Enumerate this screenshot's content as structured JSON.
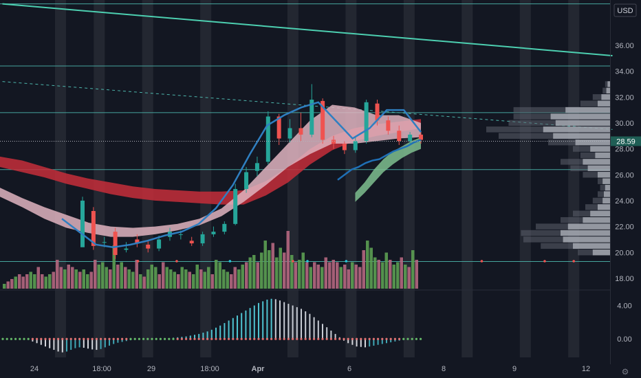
{
  "chart_data": {
    "type": "candlestick",
    "title": "",
    "currency_label": "USD",
    "last_price_label": "28.59",
    "last_price": 28.59,
    "ylim": [
      17.2,
      39.5
    ],
    "y_ticks": [
      18,
      20,
      22,
      24,
      26,
      28,
      30,
      32,
      34,
      36
    ],
    "y_tick_labels": [
      "18.00",
      "20.00",
      "22.00",
      "24.00",
      "26.00",
      "28.00",
      "30.00",
      "32.00",
      "34.00",
      "36.00"
    ],
    "x_labels": [
      "24",
      "18:00",
      "29",
      "18:00",
      "Apr",
      "6",
      "8",
      "9",
      "12"
    ],
    "horizontal_levels": [
      39.2,
      34.4,
      30.8,
      26.4,
      19.3
    ],
    "trendline": {
      "start": [
        0,
        39.2
      ],
      "end": [
        126,
        35.2
      ]
    },
    "dashed_trendline": {
      "start": [
        0,
        33.2
      ],
      "end": [
        126,
        29.5
      ]
    },
    "candles": [
      [
        20.4,
        24.0,
        24.3,
        23.6
      ],
      [
        23.2,
        20.5,
        23.5,
        20.2
      ],
      [
        20.8,
        20.8,
        21.2,
        20.4
      ],
      [
        21.6,
        19.8,
        21.9,
        19.5
      ],
      [
        20.2,
        20.3,
        20.8,
        20.0
      ],
      [
        21.0,
        20.7,
        21.4,
        20.4
      ],
      [
        20.6,
        20.3,
        20.9,
        20.0
      ],
      [
        20.3,
        21.0,
        21.3,
        20.1
      ],
      [
        21.2,
        21.6,
        21.9,
        20.9
      ],
      [
        21.4,
        21.4,
        21.7,
        21.0
      ],
      [
        20.9,
        20.7,
        21.2,
        20.5
      ],
      [
        20.7,
        21.4,
        21.6,
        20.5
      ],
      [
        21.4,
        21.6,
        22.0,
        21.2
      ],
      [
        21.6,
        22.2,
        22.4,
        21.4
      ],
      [
        22.2,
        24.9,
        25.3,
        22.1
      ],
      [
        24.9,
        26.2,
        26.6,
        24.6
      ],
      [
        26.3,
        26.9,
        27.4,
        25.9
      ],
      [
        27.0,
        30.5,
        30.9,
        26.8
      ],
      [
        30.5,
        28.8,
        30.7,
        28.3
      ],
      [
        28.8,
        29.6,
        30.3,
        28.5
      ],
      [
        29.6,
        29.1,
        30.8,
        28.6
      ],
      [
        29.1,
        31.8,
        33.0,
        28.9
      ],
      [
        31.7,
        28.7,
        31.9,
        28.4
      ],
      [
        28.7,
        28.4,
        29.0,
        28.0
      ],
      [
        28.4,
        27.9,
        28.6,
        27.6
      ],
      [
        27.9,
        28.6,
        29.0,
        27.7
      ],
      [
        28.6,
        31.6,
        31.8,
        28.4
      ],
      [
        31.5,
        30.2,
        31.8,
        29.8
      ],
      [
        30.2,
        29.4,
        30.5,
        29.1
      ],
      [
        29.4,
        28.6,
        29.8,
        28.3
      ],
      [
        28.6,
        29.1,
        29.3,
        28.4
      ],
      [
        29.1,
        28.7,
        29.3,
        28.4
      ]
    ],
    "vwap_bands": [
      {
        "name": "",
        "color": "#c62e3a",
        "upper": [
          27.4,
          27.1,
          26.6,
          26.1,
          25.7,
          25.4,
          25.1,
          24.9,
          24.8,
          24.7,
          24.7,
          24.8,
          25.5,
          26.6,
          28.0,
          29.0,
          29.6,
          29.9,
          30.1,
          30.3
        ],
        "lower": [
          26.6,
          26.2,
          25.8,
          25.3,
          24.9,
          24.5,
          24.2,
          24.0,
          23.9,
          23.8,
          23.7,
          23.7,
          24.4,
          25.4,
          26.8,
          27.9,
          28.6,
          29.0,
          29.3,
          29.6
        ]
      },
      {
        "name": "",
        "color": "#e0b4c0",
        "upper": [
          25.0,
          24.2,
          23.5,
          22.9,
          22.3,
          22.0,
          21.9,
          22.0,
          22.2,
          22.6,
          23.4,
          24.8,
          26.6,
          28.4,
          30.2,
          31.4,
          31.2,
          30.6,
          30.6,
          30.0
        ],
        "lower": [
          24.3,
          23.5,
          22.6,
          21.9,
          21.5,
          21.2,
          21.2,
          21.4,
          21.7,
          22.1,
          22.8,
          23.9,
          25.2,
          26.6,
          27.6,
          28.4,
          28.4,
          28.6,
          28.8,
          28.9
        ]
      },
      {
        "name": "",
        "color": "#7fc08f",
        "upper": [
          null,
          null,
          null,
          null,
          null,
          null,
          null,
          null,
          null,
          null,
          24.6,
          25.4,
          26.4,
          27.2,
          27.8,
          28.2,
          28.6,
          28.9
        ],
        "lower": [
          null,
          null,
          null,
          null,
          null,
          null,
          null,
          null,
          null,
          null,
          23.9,
          24.6,
          25.4,
          26.2,
          26.8,
          27.3,
          27.7,
          28.0
        ]
      }
    ],
    "ema_fast": [
      22.6,
      21.6,
      20.6,
      20.4,
      20.6,
      20.9,
      21.3,
      21.6,
      22.2,
      23.4,
      25.2,
      27.6,
      29.8,
      30.6,
      31.2,
      31.6,
      30.2,
      28.8,
      29.6,
      31.0,
      31.0,
      29.3
    ],
    "ema_slow": [
      null,
      null,
      null,
      null,
      null,
      null,
      null,
      null,
      null,
      null,
      null,
      25.6,
      26.0,
      26.4,
      26.6,
      26.9,
      27.1,
      27.2,
      27.5,
      27.8,
      28.0,
      28.2,
      28.5,
      28.7
    ],
    "volume_profile": [
      {
        "price": 33.0,
        "total": 4,
        "buy": 2
      },
      {
        "price": 32.5,
        "total": 6,
        "buy": 3
      },
      {
        "price": 32.0,
        "total": 14,
        "buy": 7
      },
      {
        "price": 31.5,
        "total": 24,
        "buy": 10
      },
      {
        "price": 31.0,
        "total": 78,
        "buy": 36
      },
      {
        "price": 30.5,
        "total": 78,
        "buy": 48
      },
      {
        "price": 30.0,
        "total": 82,
        "buy": 44
      },
      {
        "price": 29.5,
        "total": 100,
        "buy": 54
      },
      {
        "price": 29.0,
        "total": 90,
        "buy": 46
      },
      {
        "price": 28.5,
        "total": 50,
        "buy": 28
      },
      {
        "price": 28.0,
        "total": 30,
        "buy": 16
      },
      {
        "price": 27.5,
        "total": 24,
        "buy": 12
      },
      {
        "price": 27.0,
        "total": 40,
        "buy": 22
      },
      {
        "price": 26.5,
        "total": 32,
        "buy": 18
      },
      {
        "price": 26.0,
        "total": 22,
        "buy": 10
      },
      {
        "price": 25.5,
        "total": 10,
        "buy": 6
      },
      {
        "price": 25.0,
        "total": 8,
        "buy": 4
      },
      {
        "price": 24.5,
        "total": 10,
        "buy": 5
      },
      {
        "price": 24.0,
        "total": 14,
        "buy": 6
      },
      {
        "price": 23.5,
        "total": 20,
        "buy": 10
      },
      {
        "price": 23.0,
        "total": 30,
        "buy": 16
      },
      {
        "price": 22.5,
        "total": 40,
        "buy": 22
      },
      {
        "price": 22.0,
        "total": 60,
        "buy": 34
      },
      {
        "price": 21.5,
        "total": 72,
        "buy": 40
      },
      {
        "price": 21.0,
        "total": 70,
        "buy": 38
      },
      {
        "price": 20.5,
        "total": 56,
        "buy": 30
      },
      {
        "price": 20.0,
        "total": 26,
        "buy": 14
      }
    ],
    "volume": [
      0.1,
      0.15,
      0.2,
      0.25,
      0.3,
      0.25,
      0.3,
      0.35,
      0.3,
      0.45,
      0.3,
      0.25,
      0.3,
      0.35,
      0.6,
      0.45,
      0.4,
      0.5,
      0.45,
      0.4,
      0.35,
      0.4,
      0.3,
      0.35,
      0.6,
      0.5,
      0.55,
      0.45,
      0.4,
      0.9,
      0.5,
      0.55,
      0.45,
      0.4,
      0.35,
      0.6,
      0.3,
      0.25,
      0.4,
      0.5,
      0.45,
      0.3,
      0.55,
      0.45,
      0.4,
      0.35,
      0.3,
      0.45,
      0.4,
      0.35,
      0.3,
      0.5,
      0.4,
      0.35,
      0.45,
      0.3,
      0.6,
      0.55,
      0.4,
      0.35,
      0.3,
      0.45,
      0.4,
      0.5,
      0.55,
      0.65,
      0.7,
      0.55,
      0.75,
      1.0,
      0.8,
      0.95,
      0.65,
      0.85,
      0.75,
      1.2,
      0.7,
      0.55,
      0.6,
      0.75,
      0.55,
      0.45,
      0.55,
      0.5,
      0.45,
      0.65,
      0.55,
      0.6,
      0.55,
      0.45,
      0.5,
      0.4,
      0.55,
      0.5,
      0.45,
      0.8,
      1.0,
      0.85,
      0.65,
      0.6,
      0.55,
      0.75,
      0.6,
      0.5,
      0.55,
      0.65,
      0.5,
      0.45,
      0.8,
      0.6
    ],
    "volume_up": [
      1,
      0,
      0,
      1,
      0,
      0,
      0,
      1,
      1,
      0,
      0,
      1,
      1,
      0,
      0,
      0,
      1,
      0,
      0,
      1,
      0,
      1,
      1,
      0,
      0,
      1,
      1,
      1,
      0,
      1,
      0,
      1,
      0,
      1,
      1,
      0,
      1,
      0,
      1,
      1,
      1,
      0,
      0,
      1,
      1,
      1,
      0,
      1,
      1,
      0,
      1,
      1,
      0,
      1,
      1,
      0,
      1,
      1,
      1,
      1,
      0,
      0,
      1,
      1,
      0,
      1,
      1,
      0,
      1,
      1,
      1,
      0,
      1,
      1,
      0,
      0,
      1,
      0,
      1,
      1,
      0,
      1,
      0,
      0,
      1,
      0,
      0,
      0,
      0,
      1,
      0,
      0,
      1,
      0,
      0,
      0,
      1,
      1,
      1,
      0,
      1,
      1,
      0,
      1,
      1,
      0,
      1,
      0,
      1,
      0
    ],
    "oscillator_ylim": [
      -2.2,
      5.6
    ],
    "oscillator_ticks": [
      4.0,
      0.0
    ],
    "oscillator_tick_labels": [
      "4.00",
      "0.00"
    ],
    "oscillator": [
      0.05,
      0.06,
      0.05,
      0.04,
      0.02,
      0,
      -0.1,
      -0.3,
      -0.5,
      -0.7,
      -0.9,
      -1.1,
      -1.3,
      -1.5,
      -1.6,
      -1.5,
      -1.3,
      -1.1,
      -1.0,
      -1.05,
      -1.15,
      -1.25,
      -1.3,
      -1.2,
      -1.0,
      -0.8,
      -0.6,
      -0.45,
      -0.35,
      -0.25,
      -0.15,
      -0.08,
      -0.03,
      0,
      0.03,
      0.05,
      0.05,
      0.06,
      0.08,
      0.1,
      0.15,
      0.2,
      0.25,
      0.3,
      0.4,
      0.5,
      0.6,
      0.75,
      0.9,
      1.1,
      1.35,
      1.6,
      1.9,
      2.2,
      2.5,
      2.8,
      3.1,
      3.4,
      3.7,
      4.0,
      4.3,
      4.5,
      4.7,
      4.8,
      4.75,
      4.6,
      4.4,
      4.2,
      4.0,
      3.8,
      3.6,
      3.3,
      3.0,
      2.6,
      2.2,
      1.8,
      1.4,
      1.0,
      0.6,
      0.2,
      -0.2,
      -0.5,
      -0.7,
      -0.9,
      -0.95,
      -1.0,
      -0.9,
      -0.8,
      -0.7,
      -0.6,
      -0.5,
      -0.4,
      -0.3,
      -0.2,
      -0.12,
      -0.06,
      0,
      0.03,
      0.05
    ],
    "signal_dots_red": [
      28,
      36,
      60,
      99,
      112,
      118
    ],
    "signal_dots_blue": [
      47,
      63,
      71
    ],
    "session_shading_x": [
      12,
      20,
      30,
      42,
      60,
      72,
      84,
      96,
      108,
      118
    ]
  }
}
